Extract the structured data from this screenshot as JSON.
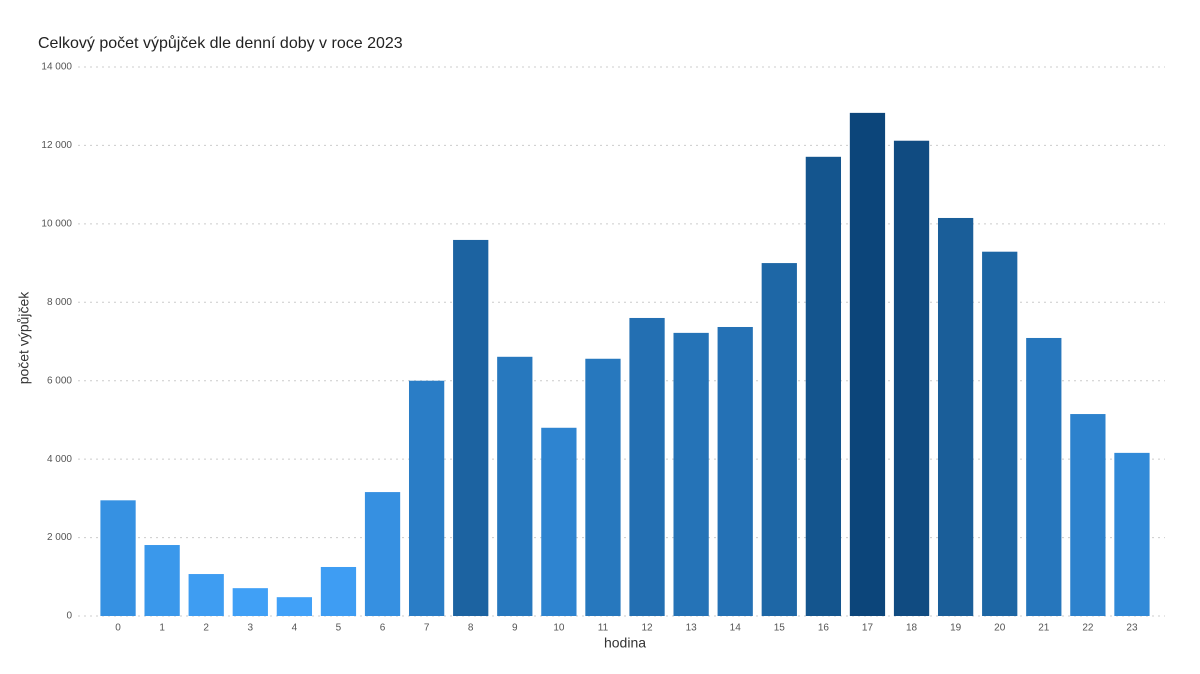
{
  "chart_data": {
    "type": "bar",
    "title": "Celkový počet výpůjček dle denní doby v roce 2023",
    "x_label": "hodina",
    "y_label": "počet výpůjček",
    "categories": [
      "0",
      "1",
      "2",
      "3",
      "4",
      "5",
      "6",
      "7",
      "8",
      "9",
      "10",
      "11",
      "12",
      "13",
      "14",
      "15",
      "16",
      "17",
      "18",
      "19",
      "20",
      "21",
      "22",
      "23"
    ],
    "values": [
      2950,
      1810,
      1070,
      710,
      480,
      1250,
      3160,
      6000,
      9590,
      6610,
      4800,
      6560,
      7600,
      7220,
      7370,
      9000,
      11710,
      12830,
      12120,
      10150,
      9290,
      7090,
      5150,
      4160
    ],
    "colors": [
      "#3691e2",
      "#3a98eb",
      "#3e9df2",
      "#40a0f6",
      "#41a1f8",
      "#3e9df3",
      "#3690e1",
      "#2a7dc6",
      "#1c63a1",
      "#2778be",
      "#2e84d0",
      "#2778be",
      "#236fb2",
      "#2573b7",
      "#2471b5",
      "#1e67a6",
      "#14558e",
      "#0c457a",
      "#104b81",
      "#1a5e99",
      "#1d66a4",
      "#2676bc",
      "#2d82cd",
      "#318ad8"
    ],
    "ylim": [
      0,
      14000
    ],
    "yticks": [
      0,
      {
        "value": 2000,
        "label": "2 000"
      },
      {
        "value": 4000,
        "label": "4 000"
      },
      {
        "value": 6000,
        "label": "6 000"
      },
      {
        "value": 8000,
        "label": "8 000"
      },
      {
        "value": 10000,
        "label": "10 000"
      },
      {
        "value": 12000,
        "label": "12 000"
      },
      {
        "value": 14000,
        "label": "14 000"
      }
    ],
    "grid": true
  }
}
